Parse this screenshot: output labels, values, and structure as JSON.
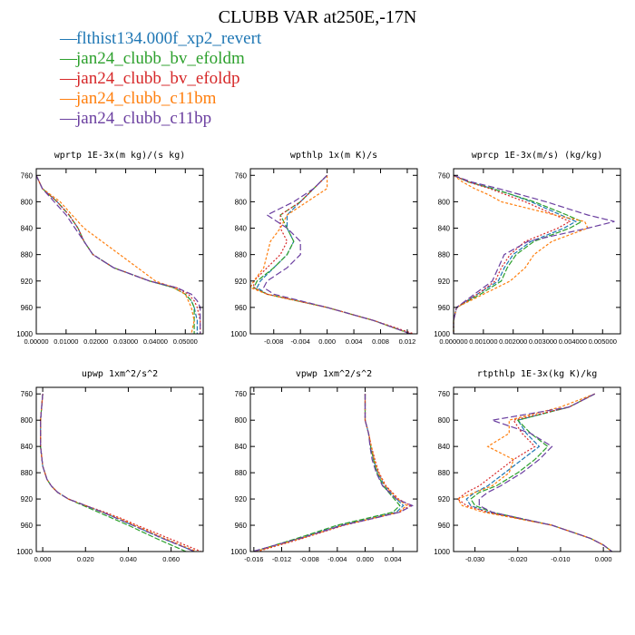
{
  "title": "CLUBB VAR at250E,-17N",
  "colors": [
    "#1f77b4",
    "#2ca02c",
    "#d62728",
    "#ff7f0e",
    "#6b3fa0"
  ],
  "legend": [
    "flthist134.000f_xp2_revert",
    "jan24_clubb_bv_efoldm",
    "jan24_clubb_bv_efoldp",
    "jan24_clubb_c11bm",
    "jan24_clubb_c11bp"
  ],
  "chart_data": [
    {
      "type": "line",
      "title": "wprtp  1E-3x(m kg)/(s kg)",
      "xlim": [
        0,
        0.056
      ],
      "ylim": [
        1000,
        750
      ],
      "xticks": [
        0,
        0.01,
        0.02,
        0.03,
        0.04,
        0.05
      ],
      "xticklabels": [
        "0.00000",
        "0.01000",
        "0.02000",
        "0.03000",
        "0.04000",
        "0.05000"
      ],
      "yticks": [
        760,
        800,
        840,
        880,
        920,
        960,
        1000
      ],
      "y": [
        760,
        780,
        800,
        820,
        840,
        860,
        880,
        900,
        920,
        930,
        940,
        950,
        960,
        980,
        1000
      ],
      "series": [
        {
          "values": [
            0.0,
            0.002,
            0.007,
            0.011,
            0.014,
            0.016,
            0.019,
            0.026,
            0.038,
            0.046,
            0.05,
            0.052,
            0.053,
            0.054,
            0.054
          ]
        },
        {
          "values": [
            0.0,
            0.002,
            0.007,
            0.011,
            0.014,
            0.016,
            0.019,
            0.026,
            0.038,
            0.046,
            0.05,
            0.052,
            0.053,
            0.053,
            0.053
          ]
        },
        {
          "values": [
            0.0,
            0.002,
            0.007,
            0.011,
            0.014,
            0.016,
            0.019,
            0.026,
            0.038,
            0.047,
            0.051,
            0.053,
            0.054,
            0.055,
            0.055
          ]
        },
        {
          "values": [
            0.0,
            0.002,
            0.008,
            0.012,
            0.016,
            0.022,
            0.028,
            0.034,
            0.04,
            0.046,
            0.05,
            0.051,
            0.052,
            0.053,
            0.052
          ]
        },
        {
          "values": [
            0.0,
            0.002,
            0.006,
            0.01,
            0.013,
            0.016,
            0.019,
            0.026,
            0.038,
            0.047,
            0.052,
            0.054,
            0.055,
            0.055,
            0.055
          ]
        }
      ]
    },
    {
      "type": "line",
      "title": "wpthlp  1x(m K)/s",
      "xlim": [
        -0.0115,
        0.0135
      ],
      "ylim": [
        1000,
        750
      ],
      "xticks": [
        -0.008,
        -0.004,
        0,
        0.004,
        0.008,
        0.012
      ],
      "xticklabels": [
        "-0.008",
        "-0.004",
        "0.000",
        "0.004",
        "0.008",
        "0.012"
      ],
      "yticks": [
        760,
        800,
        840,
        880,
        920,
        960,
        1000
      ],
      "y": [
        760,
        780,
        800,
        820,
        840,
        860,
        880,
        900,
        920,
        930,
        940,
        960,
        980,
        1000
      ],
      "series": [
        {
          "values": [
            0.0,
            -0.002,
            -0.004,
            -0.006,
            -0.006,
            -0.005,
            -0.006,
            -0.008,
            -0.01,
            -0.0105,
            -0.009,
            0.0,
            0.007,
            0.0125
          ]
        },
        {
          "values": [
            0.0,
            -0.002,
            -0.004,
            -0.007,
            -0.006,
            -0.005,
            -0.006,
            -0.008,
            -0.0105,
            -0.011,
            -0.009,
            0.0,
            0.007,
            0.0125
          ]
        },
        {
          "values": [
            0.0,
            -0.002,
            -0.004,
            -0.007,
            -0.007,
            -0.006,
            -0.007,
            -0.009,
            -0.011,
            -0.011,
            -0.009,
            0.0,
            0.007,
            0.013
          ]
        },
        {
          "values": [
            0.0,
            0.0,
            -0.003,
            -0.006,
            -0.007,
            -0.0085,
            -0.009,
            -0.0095,
            -0.011,
            -0.0115,
            -0.009,
            0.0,
            0.007,
            0.0125
          ]
        },
        {
          "values": [
            0.0,
            -0.002,
            -0.005,
            -0.009,
            -0.006,
            -0.004,
            -0.004,
            -0.006,
            -0.009,
            -0.0095,
            -0.008,
            0.0,
            0.007,
            0.0125
          ]
        }
      ]
    },
    {
      "type": "line",
      "title": "wprcp  1E-3x(m/s) (kg/kg)",
      "xlim": [
        0,
        0.0056
      ],
      "ylim": [
        1000,
        750
      ],
      "xticks": [
        0,
        0.001,
        0.002,
        0.003,
        0.004,
        0.005
      ],
      "xticklabels": [
        "0.000000",
        "0.001000",
        "0.002000",
        "0.003000",
        "0.004000",
        "0.005000"
      ],
      "yticks": [
        760,
        800,
        840,
        880,
        920,
        960,
        1000
      ],
      "y": [
        760,
        770,
        780,
        790,
        800,
        820,
        830,
        840,
        860,
        880,
        900,
        920,
        940,
        960,
        980,
        1000
      ],
      "series": [
        {
          "values": [
            0.0,
            0.0005,
            0.0013,
            0.002,
            0.0026,
            0.0036,
            0.0041,
            0.0037,
            0.0026,
            0.002,
            0.0017,
            0.0015,
            0.0008,
            0.0001,
            0.0,
            0.0
          ]
        },
        {
          "values": [
            0.0,
            0.0005,
            0.0013,
            0.002,
            0.0027,
            0.0038,
            0.0043,
            0.0039,
            0.0027,
            0.0021,
            0.0018,
            0.0016,
            0.0009,
            0.0001,
            0.0,
            0.0
          ]
        },
        {
          "values": [
            0.0,
            0.0005,
            0.0012,
            0.0018,
            0.0024,
            0.0034,
            0.0039,
            0.0035,
            0.0024,
            0.0019,
            0.0016,
            0.0014,
            0.0008,
            0.0001,
            0.0,
            0.0
          ]
        },
        {
          "values": [
            0.0,
            0.0003,
            0.0007,
            0.0012,
            0.0016,
            0.0034,
            0.0044,
            0.0045,
            0.0033,
            0.0027,
            0.0024,
            0.0019,
            0.001,
            0.0001,
            0.0,
            0.0
          ]
        },
        {
          "values": [
            0.0,
            0.0006,
            0.0015,
            0.0023,
            0.0031,
            0.0045,
            0.0054,
            0.0045,
            0.0025,
            0.0017,
            0.0015,
            0.0013,
            0.0007,
            0.0001,
            0.0,
            0.0
          ]
        }
      ]
    },
    {
      "type": "line",
      "title": "upwp  1xm^2/s^2",
      "xlim": [
        -0.003,
        0.075
      ],
      "ylim": [
        1000,
        750
      ],
      "xticks": [
        0,
        0.02,
        0.04,
        0.06
      ],
      "xticklabels": [
        "0.000",
        "0.020",
        "0.040",
        "0.060"
      ],
      "yticks": [
        760,
        800,
        840,
        880,
        920,
        960,
        1000
      ],
      "y": [
        760,
        800,
        840,
        870,
        890,
        900,
        910,
        920,
        930,
        940,
        950,
        960,
        980,
        1000
      ],
      "series": [
        {
          "values": [
            0.0,
            -0.001,
            -0.001,
            0.0,
            0.002,
            0.004,
            0.007,
            0.012,
            0.02,
            0.028,
            0.035,
            0.042,
            0.056,
            0.071
          ]
        },
        {
          "values": [
            0.0,
            -0.001,
            -0.001,
            0.0,
            0.002,
            0.004,
            0.007,
            0.012,
            0.019,
            0.026,
            0.033,
            0.04,
            0.053,
            0.067
          ]
        },
        {
          "values": [
            0.0,
            -0.001,
            -0.001,
            0.0,
            0.002,
            0.004,
            0.007,
            0.012,
            0.02,
            0.029,
            0.037,
            0.044,
            0.059,
            0.074
          ]
        },
        {
          "values": [
            0.0,
            -0.001,
            -0.001,
            0.0,
            0.002,
            0.004,
            0.007,
            0.012,
            0.02,
            0.028,
            0.036,
            0.043,
            0.057,
            0.072
          ]
        },
        {
          "values": [
            0.0,
            -0.001,
            -0.001,
            0.0,
            0.002,
            0.004,
            0.007,
            0.012,
            0.02,
            0.028,
            0.035,
            0.042,
            0.056,
            0.071
          ]
        }
      ]
    },
    {
      "type": "line",
      "title": "vpwp  1xm^2/s^2",
      "xlim": [
        -0.0165,
        0.0075
      ],
      "ylim": [
        1000,
        750
      ],
      "xticks": [
        -0.016,
        -0.012,
        -0.008,
        -0.004,
        0,
        0.004
      ],
      "xticklabels": [
        "-0.016",
        "-0.012",
        "-0.008",
        "-0.004",
        "0.000",
        "0.004"
      ],
      "yticks": [
        760,
        800,
        840,
        880,
        920,
        960,
        1000
      ],
      "y": [
        760,
        800,
        820,
        840,
        860,
        880,
        900,
        920,
        930,
        940,
        950,
        960,
        980,
        1000
      ],
      "series": [
        {
          "values": [
            0.0,
            0.0,
            0.0005,
            0.0008,
            0.0012,
            0.0018,
            0.0028,
            0.0045,
            0.0055,
            0.0045,
            0.0005,
            -0.0035,
            -0.0095,
            -0.016
          ]
        },
        {
          "values": [
            0.0,
            0.0,
            0.0005,
            0.0008,
            0.0012,
            0.0017,
            0.0026,
            0.0042,
            0.005,
            0.004,
            0.0,
            -0.004,
            -0.0098,
            -0.016
          ]
        },
        {
          "values": [
            0.0,
            0.0,
            0.0005,
            0.0009,
            0.0014,
            0.002,
            0.003,
            0.0048,
            0.0065,
            0.005,
            0.001,
            -0.003,
            -0.009,
            -0.0155
          ]
        },
        {
          "values": [
            0.0,
            0.0,
            0.0005,
            0.0009,
            0.0013,
            0.0019,
            0.0029,
            0.0047,
            0.006,
            0.0048,
            0.0008,
            -0.0032,
            -0.0092,
            -0.0158
          ]
        },
        {
          "values": [
            0.0,
            0.0,
            0.0005,
            0.0007,
            0.001,
            0.0016,
            0.0025,
            0.0045,
            0.0068,
            0.005,
            0.001,
            -0.0032,
            -0.0094,
            -0.0162
          ]
        }
      ]
    },
    {
      "type": "line",
      "title": "rtpthlp  1E-3x(kg K)/kg",
      "xlim": [
        -0.035,
        0.004
      ],
      "ylim": [
        1000,
        750
      ],
      "xticks": [
        -0.03,
        -0.02,
        -0.01,
        0
      ],
      "xticklabels": [
        "-0.030",
        "-0.020",
        "-0.010",
        "0.000"
      ],
      "yticks": [
        760,
        800,
        840,
        880,
        920,
        960,
        1000
      ],
      "y": [
        760,
        780,
        800,
        820,
        840,
        860,
        880,
        900,
        910,
        920,
        930,
        940,
        960,
        980,
        990,
        1000
      ],
      "series": [
        {
          "values": [
            -0.002,
            -0.008,
            -0.02,
            -0.018,
            -0.015,
            -0.019,
            -0.023,
            -0.027,
            -0.03,
            -0.032,
            -0.031,
            -0.027,
            -0.012,
            -0.003,
            0.0,
            0.002
          ]
        },
        {
          "values": [
            -0.002,
            -0.008,
            -0.02,
            -0.017,
            -0.013,
            -0.016,
            -0.02,
            -0.025,
            -0.029,
            -0.031,
            -0.03,
            -0.026,
            -0.012,
            -0.003,
            0.0,
            0.002
          ]
        },
        {
          "values": [
            -0.002,
            -0.008,
            -0.021,
            -0.019,
            -0.016,
            -0.021,
            -0.025,
            -0.029,
            -0.032,
            -0.034,
            -0.032,
            -0.027,
            -0.012,
            -0.003,
            0.0,
            0.002
          ]
        },
        {
          "values": [
            -0.002,
            -0.01,
            -0.022,
            -0.022,
            -0.027,
            -0.021,
            -0.022,
            -0.026,
            -0.03,
            -0.034,
            -0.033,
            -0.028,
            -0.012,
            -0.003,
            0.0,
            0.002
          ]
        },
        {
          "values": [
            -0.002,
            -0.008,
            -0.026,
            -0.017,
            -0.012,
            -0.015,
            -0.019,
            -0.024,
            -0.027,
            -0.029,
            -0.029,
            -0.026,
            -0.012,
            -0.003,
            0.0,
            0.002
          ]
        }
      ]
    }
  ]
}
